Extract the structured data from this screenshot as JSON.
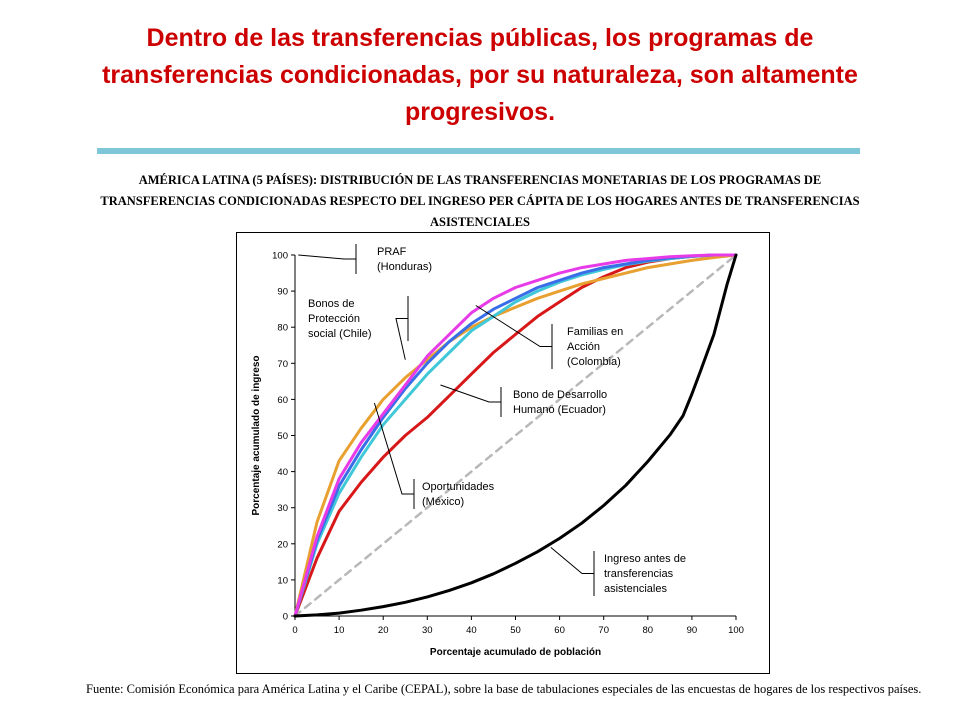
{
  "slide": {
    "title": "Dentro de las transferencias públicas, los programas de transferencias condicionadas, por su naturaleza, son altamente progresivos."
  },
  "source": "Fuente: Comisión Económica para América Latina y el Caribe (CEPAL), sobre la base de tabulaciones especiales de las encuestas de hogares de los respectivos países.",
  "chart_data": {
    "type": "line",
    "title": "AMÉRICA LATINA (5 PAÍSES): DISTRIBUCIÓN DE LAS TRANSFERENCIAS MONETARIAS DE LOS PROGRAMAS DE TRANSFERENCIAS CONDICIONADAS RESPECTO DEL INGRESO PER CÁPITA DE LOS HOGARES ANTES DE TRANSFERENCIAS ASISTENCIALES",
    "xlabel": "Porcentaje acumulado de población",
    "ylabel": "Porcentaje acumulado de ingreso",
    "xlim": [
      0,
      100
    ],
    "ylim": [
      0,
      100
    ],
    "xticks": [
      0,
      10,
      20,
      30,
      40,
      50,
      60,
      70,
      80,
      90,
      100
    ],
    "yticks": [
      0,
      10,
      20,
      30,
      40,
      50,
      60,
      70,
      80,
      90,
      100
    ],
    "grid": false,
    "series": [
      {
        "name": "PRAF (Honduras)",
        "color": "#e83be8",
        "x": [
          0,
          5,
          10,
          15,
          20,
          25,
          30,
          35,
          40,
          45,
          50,
          55,
          60,
          65,
          70,
          75,
          80,
          85,
          90,
          95,
          100
        ],
        "y": [
          0,
          22,
          38,
          48,
          56,
          64,
          72,
          78,
          84,
          88,
          91,
          93,
          95,
          96.5,
          97.5,
          98.5,
          99,
          99.5,
          99.8,
          100,
          100
        ]
      },
      {
        "name": "Familias en Acción (Colombia)",
        "color": "#3a6ee8",
        "x": [
          0,
          5,
          10,
          15,
          20,
          25,
          30,
          35,
          40,
          45,
          50,
          55,
          60,
          65,
          70,
          75,
          80,
          85,
          90,
          95,
          100
        ],
        "y": [
          0,
          21,
          36,
          46,
          55,
          63,
          70,
          76,
          81,
          85,
          88,
          91,
          93,
          95,
          96.5,
          97.5,
          98.5,
          99.2,
          99.7,
          100,
          100
        ]
      },
      {
        "name": "Bonos de Protección social (Chile)",
        "color": "#40c8d8",
        "x": [
          0,
          5,
          10,
          15,
          20,
          25,
          30,
          35,
          40,
          45,
          50,
          55,
          60,
          65,
          70,
          75,
          80,
          85,
          90,
          95,
          100
        ],
        "y": [
          0,
          20,
          34,
          44,
          53,
          60,
          67,
          73,
          79,
          83,
          87,
          90,
          92.5,
          94.5,
          96,
          97.3,
          98.3,
          99,
          99.6,
          100,
          100
        ]
      },
      {
        "name": "Oportunidades (México)",
        "color": "#e8a030",
        "x": [
          0,
          5,
          10,
          15,
          20,
          25,
          30,
          35,
          40,
          45,
          50,
          55,
          60,
          65,
          70,
          75,
          80,
          85,
          90,
          95,
          100
        ],
        "y": [
          0,
          26,
          43,
          52,
          60,
          66,
          71,
          76,
          80,
          83,
          85.5,
          88,
          90,
          92,
          93.5,
          95,
          96.5,
          97.5,
          98.5,
          99.3,
          100
        ]
      },
      {
        "name": "Bono de Desarrollo Humano (Ecuador)",
        "color": "#d81818",
        "x": [
          0,
          5,
          10,
          15,
          20,
          25,
          30,
          35,
          40,
          45,
          50,
          55,
          60,
          65,
          70,
          75,
          80,
          85,
          90,
          95,
          100
        ],
        "y": [
          0,
          16,
          29,
          37,
          44,
          50,
          55,
          61,
          67,
          73,
          78,
          83,
          87,
          91,
          94,
          96.5,
          98,
          99,
          99.6,
          100,
          100
        ]
      },
      {
        "name": "Ingreso antes de transferencias asistenciales",
        "color": "#000000",
        "x": [
          0,
          5,
          10,
          15,
          20,
          25,
          30,
          35,
          40,
          45,
          50,
          55,
          60,
          65,
          70,
          75,
          80,
          85,
          88,
          90,
          92,
          95,
          98,
          100
        ],
        "y": [
          0,
          0.3,
          0.8,
          1.6,
          2.6,
          3.8,
          5.3,
          7.1,
          9.2,
          11.7,
          14.6,
          17.8,
          21.5,
          25.7,
          30.6,
          36.2,
          42.8,
          50.1,
          55.5,
          61.5,
          68,
          78,
          92,
          100
        ]
      },
      {
        "name": "",
        "color": "#b8b8b8",
        "dashed": true,
        "x": [
          0,
          100
        ],
        "y": [
          0,
          100
        ]
      }
    ],
    "annotations": [
      {
        "lines": [
          "PRAF",
          "(Honduras)"
        ],
        "x": 0.75,
        "y": 100
      },
      {
        "lines": [
          "Bonos de",
          "Protección",
          "social (Chile)"
        ],
        "x": 25,
        "y": 71
      },
      {
        "lines": [
          "Familias en",
          "Acción",
          "(Colombia)"
        ],
        "x": 41,
        "y": 86
      },
      {
        "lines": [
          "Bono de Desarrollo",
          "Humano (Ecuador)"
        ],
        "x": 33,
        "y": 64
      },
      {
        "lines": [
          "Oportunidades",
          "(México)"
        ],
        "x": 18,
        "y": 59
      },
      {
        "lines": [
          "Ingreso antes de",
          "transferencias",
          "asistenciales"
        ],
        "x": 58,
        "y": 19
      }
    ]
  }
}
